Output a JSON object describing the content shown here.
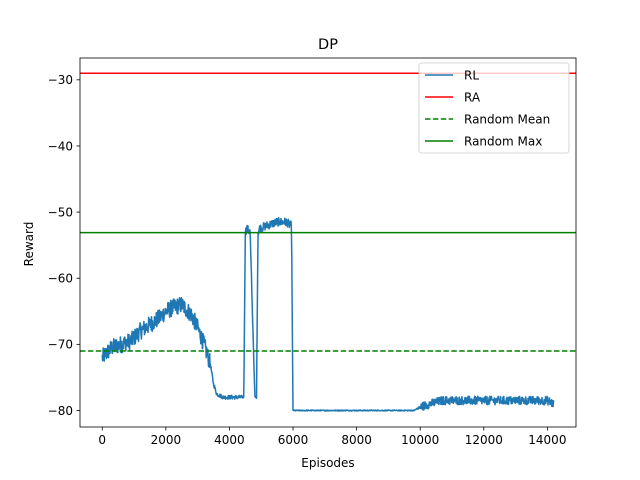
{
  "chart_data": {
    "type": "line",
    "title": "DP",
    "xlabel": "Episodes",
    "ylabel": "Reward",
    "xlim": [
      -700,
      14900
    ],
    "ylim": [
      -82.5,
      -26.7
    ],
    "xticks": [
      0,
      2000,
      4000,
      6000,
      8000,
      10000,
      12000,
      14000
    ],
    "yticks": [
      -80,
      -70,
      -60,
      -50,
      -40,
      -30
    ],
    "xtick_labels": [
      "0",
      "2000",
      "4000",
      "6000",
      "8000",
      "10000",
      "12000",
      "14000"
    ],
    "ytick_labels": [
      "−80",
      "−70",
      "−60",
      "−50",
      "−40",
      "−30"
    ],
    "grid": false,
    "legend_position": "upper right",
    "series": [
      {
        "name": "RL",
        "kind": "line",
        "color": "#1f77b4",
        "noise": "high-frequency episode-level fluctuation",
        "x": [
          0,
          300,
          600,
          900,
          1200,
          1500,
          1800,
          2000,
          2200,
          2500,
          2800,
          3000,
          3200,
          3400,
          3500,
          3600,
          3800,
          4000,
          4300,
          4450,
          4500,
          4550,
          4650,
          4800,
          4850,
          4900,
          4950,
          5200,
          5500,
          5800,
          5900,
          5950,
          6000,
          6600,
          7000,
          8000,
          9000,
          9800,
          10000,
          10300,
          10700,
          11000,
          11500,
          12000,
          12500,
          13000,
          13500,
          14000,
          14200
        ],
        "y": [
          -72,
          -70.5,
          -70,
          -69.5,
          -68,
          -67,
          -66,
          -65,
          -64.5,
          -64,
          -65.5,
          -67.5,
          -70,
          -73,
          -76,
          -77.5,
          -78,
          -78,
          -78,
          -78,
          -53,
          -52.5,
          -53,
          -78,
          -78,
          -53,
          -52.5,
          -52,
          -51.5,
          -51.5,
          -52,
          -52,
          -80,
          -80,
          -80,
          -80,
          -80,
          -80,
          -79.5,
          -79,
          -78.5,
          -78.5,
          -78.5,
          -78.5,
          -78.5,
          -78.5,
          -78.5,
          -78.5,
          -79
        ]
      },
      {
        "name": "RA",
        "kind": "hline",
        "color": "#ff0000",
        "linestyle": "solid",
        "y": -29
      },
      {
        "name": "Random Mean",
        "kind": "hline",
        "color": "#008000",
        "linestyle": "dashed",
        "y": -71
      },
      {
        "name": "Random Max",
        "kind": "hline",
        "color": "#008000",
        "linestyle": "solid",
        "y": -53.1
      }
    ]
  }
}
